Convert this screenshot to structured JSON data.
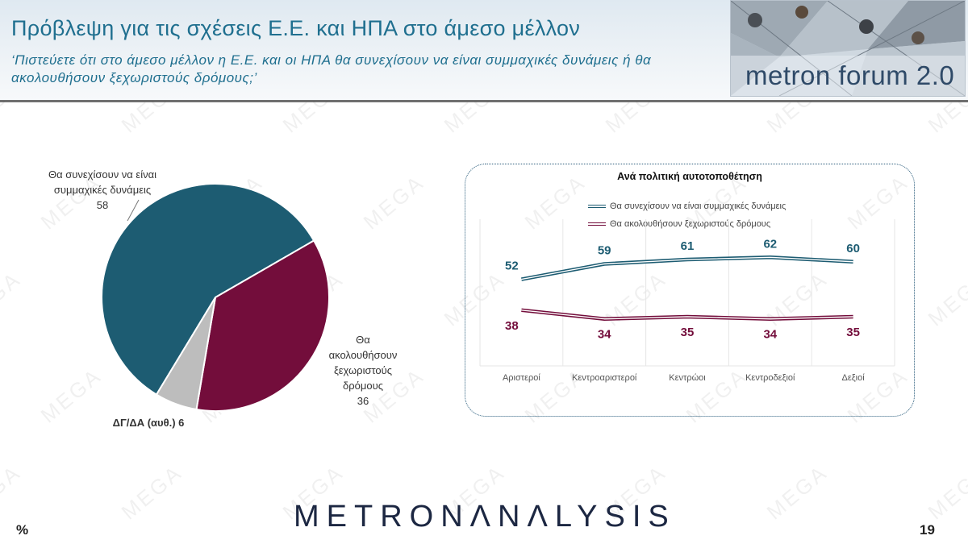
{
  "header": {
    "title": "Πρόβλεψη για τις σχέσεις Ε.Ε. και ΗΠΑ στο άμεσο μέλλον",
    "question": "‘Πιστεύετε ότι στο άμεσο μέλλον η Ε.Ε. και οι ΗΠΑ θα συνεχίσουν να είναι συμμαχικές δυνάμεις ή θα ακολουθήσουν ξεχωριστούς δρόμους;’",
    "logo_text": "metron forum 2.0"
  },
  "watermark_text": "MEGA",
  "pie_labels": {
    "continue_l1": "Θα συνεχίσουν να είναι",
    "continue_l2": "συμμαχικές δυνάμεις",
    "continue_value": "58",
    "separate_l1": "Θα",
    "separate_l2": "ακολουθήσουν",
    "separate_l3": "ξεχωριστούς",
    "separate_l4": "δρόμους",
    "separate_value": "36",
    "dk_label": "ΔΓ/ΔΑ (αυθ.) 6"
  },
  "colors": {
    "teal": "#1d5c72",
    "maroon": "#730d3b",
    "gray": "#bdbdbd",
    "title_blue": "#1f6f8f"
  },
  "chart_data": [
    {
      "type": "pie",
      "slices": [
        {
          "label": "Θα συνεχίσουν να είναι συμμαχικές δυνάμεις",
          "value": 58
        },
        {
          "label": "Θα ακολουθήσουν ξεχωριστούς δρόμους",
          "value": 36
        },
        {
          "label": "ΔΓ/ΔΑ (αυθ.)",
          "value": 6
        }
      ]
    },
    {
      "type": "line",
      "title": "Ανά πολιτική αυτοτοποθέτηση",
      "categories": [
        "Αριστεροί",
        "Κεντροαριστεροί",
        "Κεντρώοι",
        "Κεντροδεξιοί",
        "Δεξιοί"
      ],
      "series": [
        {
          "name": "Θα συνεχίσουν να είναι συμμαχικές δυνάμεις",
          "values": [
            52,
            59,
            61,
            62,
            60
          ],
          "color": "#1d5c72"
        },
        {
          "name": "Θα ακολουθήσουν ξεχωριστούς δρόμους",
          "values": [
            38,
            34,
            35,
            34,
            35
          ],
          "color": "#730d3b"
        }
      ],
      "ylim": [
        0,
        100
      ],
      "grid": "vertical",
      "legend": "top"
    }
  ],
  "footer": {
    "brand": "METRONΛNΛLYSIS",
    "unit": "%",
    "page": "19"
  }
}
